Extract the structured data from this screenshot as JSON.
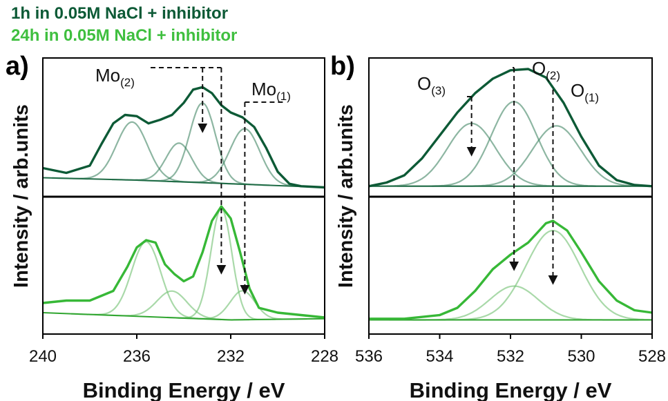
{
  "legend": [
    {
      "label": "1h in 0.05M NaCl + inhibitor",
      "color": "#0d5a36"
    },
    {
      "label": "24h in 0.05M NaCl + inhibitor",
      "color": "#3fbf3f"
    }
  ],
  "colors": {
    "dark_envelope": "#0d5a36",
    "dark_component": "#2f7a55",
    "dark_background": "#1e6b45",
    "light_envelope": "#37b837",
    "light_component": "#6fbf6f",
    "light_background": "#2fa52f"
  },
  "chart_data": [
    {
      "type": "line",
      "panel_label": "a)",
      "xlabel": "Binding Energy / eV",
      "ylabel": "Intensity / arb.units",
      "xlim": [
        240,
        228
      ],
      "x_ticks": [
        240,
        236,
        232,
        228
      ],
      "x_tick_labels": [
        "240",
        "236",
        "232",
        "228"
      ],
      "peak_labels": [
        {
          "base": "Mo",
          "sub": "(2)",
          "arrow_x": [
            233.2,
            232.4
          ]
        },
        {
          "base": "Mo",
          "sub": "(1)",
          "arrow_x": [
            231.4
          ]
        }
      ],
      "subplots": [
        {
          "sample": "1h in 0.05M NaCl + inhibitor",
          "ylim": [
            0,
            1
          ],
          "background": [
            [
              240,
              0.1
            ],
            [
              236,
              0.08
            ],
            [
              232,
              0.05
            ],
            [
              228,
              0.02
            ]
          ],
          "components": [
            {
              "center": 236.2,
              "height": 0.48,
              "fwhm": 1.55
            },
            {
              "center": 234.2,
              "height": 0.32,
              "fwhm": 1.3
            },
            {
              "center": 233.2,
              "height": 0.66,
              "fwhm": 1.3
            },
            {
              "center": 231.4,
              "height": 0.46,
              "fwhm": 1.5
            }
          ],
          "envelope": [
            [
              240.0,
              0.18
            ],
            [
              239.0,
              0.14
            ],
            [
              238.0,
              0.2
            ],
            [
              237.5,
              0.38
            ],
            [
              237.0,
              0.55
            ],
            [
              236.5,
              0.62
            ],
            [
              236.0,
              0.61
            ],
            [
              235.5,
              0.55
            ],
            [
              235.0,
              0.58
            ],
            [
              234.5,
              0.62
            ],
            [
              234.0,
              0.72
            ],
            [
              233.6,
              0.83
            ],
            [
              233.2,
              0.85
            ],
            [
              232.8,
              0.8
            ],
            [
              232.4,
              0.7
            ],
            [
              232.0,
              0.64
            ],
            [
              231.5,
              0.6
            ],
            [
              231.0,
              0.52
            ],
            [
              230.5,
              0.35
            ],
            [
              230.0,
              0.15
            ],
            [
              229.5,
              0.05
            ],
            [
              229.0,
              0.03
            ],
            [
              228.0,
              0.02
            ]
          ]
        },
        {
          "sample": "24h in 0.05M NaCl + inhibitor",
          "ylim": [
            0,
            1
          ],
          "background": [
            [
              240,
              0.12
            ],
            [
              236,
              0.09
            ],
            [
              232,
              0.06
            ],
            [
              228,
              0.07
            ]
          ],
          "components": [
            {
              "center": 235.6,
              "height": 0.62,
              "fwhm": 1.45
            },
            {
              "center": 234.5,
              "height": 0.22,
              "fwhm": 1.5
            },
            {
              "center": 232.4,
              "height": 0.92,
              "fwhm": 1.05
            },
            {
              "center": 231.5,
              "height": 0.24,
              "fwhm": 1.25
            }
          ],
          "envelope": [
            [
              240.0,
              0.2
            ],
            [
              239.0,
              0.22
            ],
            [
              238.0,
              0.22
            ],
            [
              237.0,
              0.3
            ],
            [
              236.4,
              0.5
            ],
            [
              236.0,
              0.66
            ],
            [
              235.6,
              0.72
            ],
            [
              235.2,
              0.7
            ],
            [
              234.8,
              0.52
            ],
            [
              234.4,
              0.44
            ],
            [
              234.0,
              0.38
            ],
            [
              233.6,
              0.42
            ],
            [
              233.2,
              0.62
            ],
            [
              232.8,
              0.88
            ],
            [
              232.4,
              1.0
            ],
            [
              232.0,
              0.9
            ],
            [
              231.6,
              0.62
            ],
            [
              231.2,
              0.32
            ],
            [
              230.8,
              0.16
            ],
            [
              230.0,
              0.12
            ],
            [
              229.0,
              0.1
            ],
            [
              228.0,
              0.08
            ]
          ]
        }
      ]
    },
    {
      "type": "line",
      "panel_label": "b)",
      "xlabel": "Binding Energy / eV",
      "ylabel": "Intensity / arb.units",
      "xlim": [
        536,
        528
      ],
      "x_ticks": [
        536,
        534,
        532,
        530,
        528
      ],
      "x_tick_labels": [
        "536",
        "534",
        "532",
        "530",
        "528"
      ],
      "peak_labels": [
        {
          "base": "O",
          "sub": "(3)",
          "arrow_x": [
            533.1
          ]
        },
        {
          "base": "O",
          "sub": "(2)",
          "arrow_x": [
            531.9
          ]
        },
        {
          "base": "O",
          "sub": "(1)",
          "arrow_x": [
            530.8
          ]
        }
      ],
      "subplots": [
        {
          "sample": "1h in 0.05M NaCl + inhibitor",
          "ylim": [
            0,
            1
          ],
          "background": [
            [
              536,
              0.03
            ],
            [
              532,
              0.03
            ],
            [
              528,
              0.03
            ]
          ],
          "components": [
            {
              "center": 533.1,
              "height": 0.52,
              "fwhm": 1.6
            },
            {
              "center": 531.9,
              "height": 0.7,
              "fwhm": 1.5
            },
            {
              "center": 530.7,
              "height": 0.5,
              "fwhm": 1.6
            }
          ],
          "envelope": [
            [
              536.0,
              0.03
            ],
            [
              535.5,
              0.06
            ],
            [
              535.0,
              0.12
            ],
            [
              534.5,
              0.26
            ],
            [
              534.0,
              0.45
            ],
            [
              533.5,
              0.64
            ],
            [
              533.0,
              0.8
            ],
            [
              532.5,
              0.92
            ],
            [
              532.0,
              0.99
            ],
            [
              531.5,
              1.0
            ],
            [
              531.0,
              0.93
            ],
            [
              530.5,
              0.72
            ],
            [
              530.0,
              0.44
            ],
            [
              529.5,
              0.2
            ],
            [
              529.0,
              0.08
            ],
            [
              528.5,
              0.04
            ],
            [
              528.0,
              0.03
            ]
          ]
        },
        {
          "sample": "24h in 0.05M NaCl + inhibitor",
          "ylim": [
            0,
            1
          ],
          "background": [
            [
              536,
              0.06
            ],
            [
              532,
              0.06
            ],
            [
              528,
              0.06
            ]
          ],
          "components": [
            {
              "center": 531.9,
              "height": 0.28,
              "fwhm": 1.6
            },
            {
              "center": 530.8,
              "height": 0.74,
              "fwhm": 1.8
            }
          ],
          "envelope": [
            [
              536.0,
              0.07
            ],
            [
              535.0,
              0.07
            ],
            [
              534.0,
              0.1
            ],
            [
              533.5,
              0.16
            ],
            [
              533.0,
              0.3
            ],
            [
              532.5,
              0.48
            ],
            [
              532.0,
              0.6
            ],
            [
              531.5,
              0.7
            ],
            [
              531.0,
              0.86
            ],
            [
              530.8,
              0.88
            ],
            [
              530.4,
              0.8
            ],
            [
              530.0,
              0.62
            ],
            [
              529.5,
              0.38
            ],
            [
              529.0,
              0.22
            ],
            [
              528.5,
              0.14
            ],
            [
              528.0,
              0.12
            ]
          ]
        }
      ]
    }
  ]
}
